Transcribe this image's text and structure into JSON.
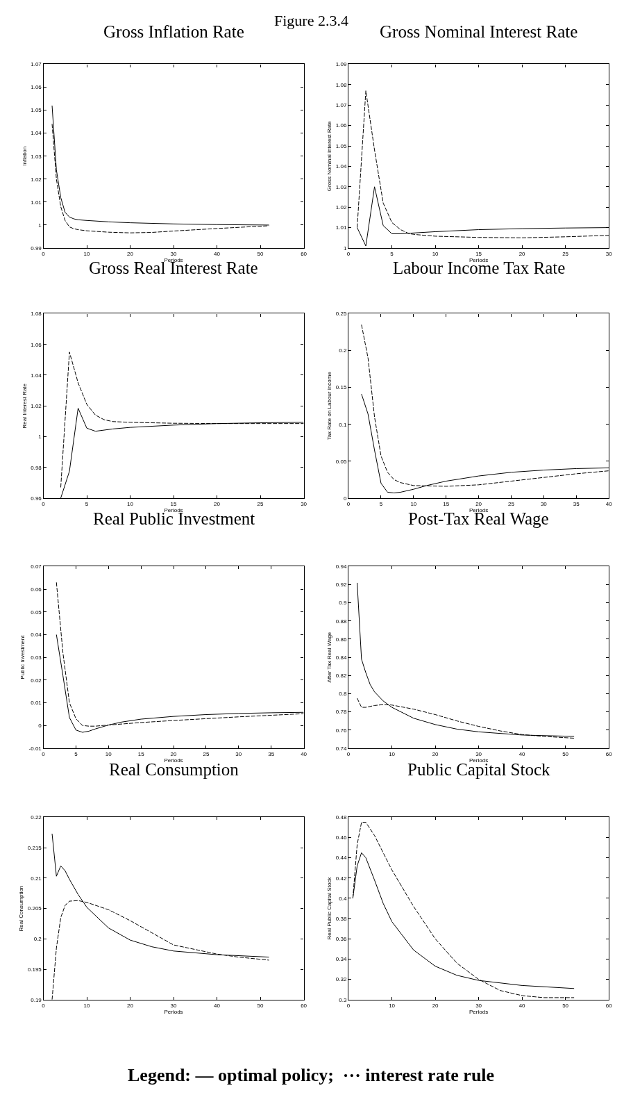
{
  "chart_data": [
    {
      "type": "line",
      "title": "Gross Inflation Rate",
      "xlabel": "Periods",
      "ylabel": "Inflation",
      "annotations": [
        "Figure 2.3.4"
      ],
      "xlim": [
        0,
        60
      ],
      "xticks": [
        0,
        10,
        20,
        30,
        40,
        50,
        60
      ],
      "ylim": [
        0.99,
        1.07
      ],
      "yticks": [
        0.99,
        1,
        1.01,
        1.02,
        1.03,
        1.04,
        1.05,
        1.06,
        1.07
      ],
      "series": [
        {
          "color": "#000000",
          "line_style": "solid",
          "x": [
            2,
            3,
            4,
            5,
            6,
            7,
            8,
            10,
            15,
            20,
            30,
            40,
            52
          ],
          "values": [
            1.052,
            1.024,
            1.012,
            1.0055,
            1.0035,
            1.0027,
            1.0023,
            1.002,
            1.0014,
            1.001,
            1.0005,
            1.0002,
            1.0
          ]
        },
        {
          "color": "#000000",
          "line_style": "dashed",
          "x": [
            2,
            3,
            4,
            5,
            6,
            7,
            8,
            10,
            15,
            20,
            25,
            30,
            40,
            52
          ],
          "values": [
            1.044,
            1.02,
            1.008,
            1.002,
            0.9992,
            0.9984,
            0.998,
            0.9975,
            0.9969,
            0.9966,
            0.9968,
            0.9974,
            0.9985,
            0.9997
          ]
        }
      ]
    },
    {
      "type": "line",
      "title": "Gross Nominal Interest Rate",
      "xlabel": "Periods",
      "ylabel": "Gross Nominal Interest Rate",
      "xlim": [
        0,
        30
      ],
      "xticks": [
        0,
        5,
        10,
        15,
        20,
        25,
        30
      ],
      "ylim": [
        1,
        1.09
      ],
      "yticks": [
        1,
        1.01,
        1.02,
        1.03,
        1.04,
        1.05,
        1.06,
        1.07,
        1.08,
        1.09
      ],
      "series": [
        {
          "color": "#000000",
          "line_style": "solid",
          "x": [
            1,
            2,
            3,
            4,
            5,
            6,
            8,
            10,
            15,
            20,
            25,
            30
          ],
          "values": [
            1.01,
            1.001,
            1.03,
            1.011,
            1.007,
            1.007,
            1.0075,
            1.008,
            1.009,
            1.0095,
            1.0098,
            1.01
          ]
        },
        {
          "color": "#000000",
          "line_style": "dashed",
          "x": [
            1,
            2,
            3,
            4,
            5,
            6,
            7,
            8,
            10,
            15,
            20,
            25,
            30
          ],
          "values": [
            1.01,
            1.077,
            1.048,
            1.022,
            1.0125,
            1.009,
            1.007,
            1.0065,
            1.0058,
            1.0052,
            1.005,
            1.0055,
            1.0062
          ]
        }
      ]
    },
    {
      "type": "line",
      "title": "Gross Real Interest Rate",
      "xlabel": "Periods",
      "ylabel": "Real Interest Rate",
      "xlim": [
        0,
        30
      ],
      "xticks": [
        0,
        5,
        10,
        15,
        20,
        25,
        30
      ],
      "ylim": [
        0.96,
        1.08
      ],
      "yticks": [
        0.96,
        0.98,
        1,
        1.02,
        1.04,
        1.06,
        1.08
      ],
      "series": [
        {
          "color": "#000000",
          "line_style": "solid",
          "x": [
            2,
            3,
            4,
            5,
            6,
            8,
            10,
            15,
            20,
            25,
            30
          ],
          "values": [
            0.96,
            0.9775,
            1.0185,
            1.0055,
            1.0035,
            1.005,
            1.006,
            1.0075,
            1.0085,
            1.009,
            1.0093
          ]
        },
        {
          "color": "#000000",
          "line_style": "dashed",
          "x": [
            2,
            3,
            4,
            5,
            6,
            7,
            8,
            10,
            15,
            20,
            30
          ],
          "values": [
            0.967,
            1.055,
            1.035,
            1.021,
            1.014,
            1.011,
            1.0098,
            1.0093,
            1.0087,
            1.0085,
            1.0085
          ]
        }
      ]
    },
    {
      "type": "line",
      "title": "Labour Income Tax Rate",
      "xlabel": "Periods",
      "ylabel": "Tax Rate on Labour Income",
      "xlim": [
        0,
        40
      ],
      "xticks": [
        0,
        5,
        10,
        15,
        20,
        25,
        30,
        35,
        40
      ],
      "ylim": [
        0,
        0.25
      ],
      "yticks": [
        0,
        0.05,
        0.1,
        0.15,
        0.2,
        0.25
      ],
      "series": [
        {
          "color": "#000000",
          "line_style": "solid",
          "x": [
            2,
            3,
            4,
            5,
            6,
            7,
            8,
            10,
            12,
            15,
            20,
            25,
            30,
            35,
            40
          ],
          "values": [
            0.141,
            0.114,
            0.065,
            0.02,
            0.008,
            0.007,
            0.008,
            0.012,
            0.017,
            0.023,
            0.03,
            0.035,
            0.038,
            0.04,
            0.041
          ]
        },
        {
          "color": "#000000",
          "line_style": "dashed",
          "x": [
            2,
            3,
            4,
            5,
            6,
            7,
            8,
            10,
            15,
            20,
            25,
            30,
            35,
            40
          ],
          "values": [
            0.235,
            0.19,
            0.11,
            0.057,
            0.035,
            0.025,
            0.021,
            0.017,
            0.016,
            0.018,
            0.023,
            0.028,
            0.033,
            0.037
          ]
        }
      ]
    },
    {
      "type": "line",
      "title": "Real Public Investment",
      "xlabel": "Periods",
      "ylabel": "Public Investment",
      "xlim": [
        0,
        40
      ],
      "xticks": [
        0,
        5,
        10,
        15,
        20,
        25,
        30,
        35,
        40
      ],
      "ylim": [
        -0.01,
        0.07
      ],
      "yticks": [
        -0.01,
        0,
        0.01,
        0.02,
        0.03,
        0.04,
        0.05,
        0.06,
        0.07
      ],
      "series": [
        {
          "color": "#000000",
          "line_style": "solid",
          "x": [
            2,
            3,
            4,
            5,
            6,
            7,
            8,
            10,
            12,
            15,
            20,
            25,
            30,
            35,
            40
          ],
          "values": [
            0.04,
            0.022,
            0.0035,
            -0.002,
            -0.003,
            -0.0025,
            -0.0015,
            0.0002,
            0.0015,
            0.0028,
            0.004,
            0.0048,
            0.0053,
            0.0056,
            0.0058
          ]
        },
        {
          "color": "#000000",
          "line_style": "dashed",
          "x": [
            2,
            3,
            4,
            5,
            6,
            7,
            8,
            10,
            15,
            20,
            25,
            30,
            35,
            40
          ],
          "values": [
            0.063,
            0.032,
            0.01,
            0.003,
            0.0,
            -0.0003,
            -0.0003,
            0.0002,
            0.0013,
            0.0022,
            0.003,
            0.0038,
            0.0045,
            0.0052
          ]
        }
      ]
    },
    {
      "type": "line",
      "title": "Post-Tax Real Wage",
      "xlabel": "Periods",
      "ylabel": "After Tax Real Wage",
      "xlim": [
        0,
        60
      ],
      "xticks": [
        0,
        10,
        20,
        30,
        40,
        50,
        60
      ],
      "ylim": [
        0.74,
        0.94
      ],
      "yticks": [
        0.74,
        0.76,
        0.78,
        0.8,
        0.82,
        0.84,
        0.86,
        0.88,
        0.9,
        0.92,
        0.94
      ],
      "series": [
        {
          "color": "#000000",
          "line_style": "solid",
          "x": [
            2,
            3,
            4,
            5,
            6,
            8,
            10,
            15,
            20,
            25,
            30,
            40,
            52
          ],
          "values": [
            0.922,
            0.838,
            0.823,
            0.81,
            0.802,
            0.792,
            0.785,
            0.773,
            0.766,
            0.761,
            0.758,
            0.7545,
            0.753
          ]
        },
        {
          "color": "#000000",
          "line_style": "dashed",
          "x": [
            2,
            3,
            4,
            6,
            8,
            10,
            15,
            20,
            25,
            30,
            35,
            40,
            45,
            52
          ],
          "values": [
            0.795,
            0.785,
            0.785,
            0.787,
            0.788,
            0.7875,
            0.783,
            0.777,
            0.77,
            0.764,
            0.759,
            0.755,
            0.753,
            0.751
          ]
        }
      ]
    },
    {
      "type": "line",
      "title": "Real Consumption",
      "xlabel": "Periods",
      "ylabel": "Real Consumption",
      "xlim": [
        0,
        60
      ],
      "xticks": [
        0,
        10,
        20,
        30,
        40,
        50,
        60
      ],
      "ylim": [
        0.19,
        0.22
      ],
      "yticks": [
        0.19,
        0.195,
        0.2,
        0.205,
        0.21,
        0.215,
        0.22
      ],
      "series": [
        {
          "color": "#000000",
          "line_style": "solid",
          "x": [
            2,
            3,
            4,
            5,
            6,
            8,
            10,
            15,
            20,
            25,
            30,
            40,
            52
          ],
          "values": [
            0.2173,
            0.2103,
            0.212,
            0.2112,
            0.2098,
            0.2073,
            0.2052,
            0.2018,
            0.1998,
            0.1987,
            0.198,
            0.1974,
            0.197
          ]
        },
        {
          "color": "#000000",
          "line_style": "dashed",
          "x": [
            2,
            3,
            4,
            5,
            6,
            8,
            10,
            15,
            20,
            25,
            30,
            40,
            45,
            52
          ],
          "values": [
            0.19,
            0.1985,
            0.2035,
            0.2055,
            0.2062,
            0.2063,
            0.206,
            0.2048,
            0.203,
            0.201,
            0.199,
            0.1975,
            0.197,
            0.1965
          ]
        }
      ]
    },
    {
      "type": "line",
      "title": "Public Capital Stock",
      "xlabel": "Periods",
      "ylabel": "Real Public Capital Stock",
      "annotations": [
        "Legend: — optimal policy;  ··· interest rate rule"
      ],
      "xlim": [
        0,
        60
      ],
      "xticks": [
        0,
        10,
        20,
        30,
        40,
        50,
        60
      ],
      "ylim": [
        0.3,
        0.48
      ],
      "yticks": [
        0.3,
        0.32,
        0.34,
        0.36,
        0.38,
        0.4,
        0.42,
        0.44,
        0.46,
        0.48
      ],
      "series": [
        {
          "color": "#000000",
          "line_style": "solid",
          "x": [
            1,
            2,
            3,
            4,
            6,
            8,
            10,
            15,
            20,
            25,
            30,
            40,
            52
          ],
          "values": [
            0.4,
            0.432,
            0.445,
            0.44,
            0.418,
            0.395,
            0.377,
            0.349,
            0.333,
            0.324,
            0.319,
            0.314,
            0.311
          ]
        },
        {
          "color": "#000000",
          "line_style": "dashed",
          "x": [
            1,
            2,
            3,
            4,
            6,
            8,
            10,
            15,
            20,
            25,
            30,
            35,
            40,
            45,
            52
          ],
          "values": [
            0.4,
            0.453,
            0.475,
            0.475,
            0.462,
            0.445,
            0.428,
            0.392,
            0.36,
            0.336,
            0.32,
            0.309,
            0.304,
            0.302,
            0.302
          ]
        }
      ]
    }
  ]
}
